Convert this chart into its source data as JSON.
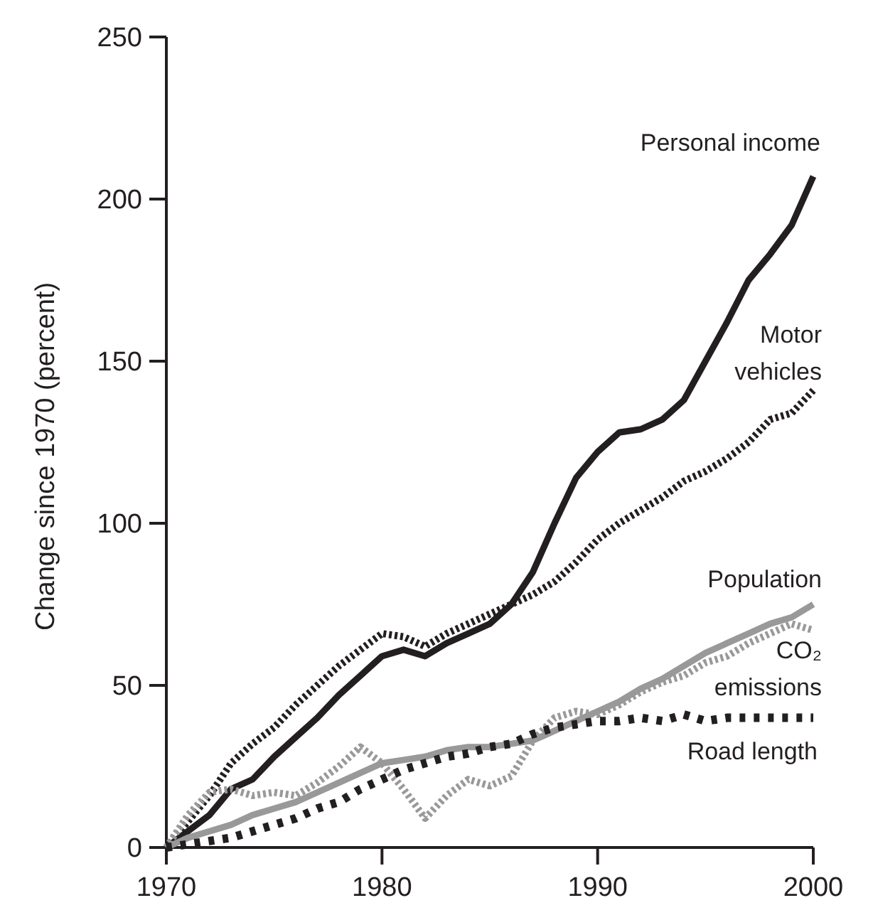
{
  "chart_data": {
    "type": "line",
    "ylabel": "Change since 1970 (percent)",
    "x": [
      1970,
      1971,
      1972,
      1973,
      1974,
      1975,
      1976,
      1977,
      1978,
      1979,
      1980,
      1981,
      1982,
      1983,
      1984,
      1985,
      1986,
      1987,
      1988,
      1989,
      1990,
      1991,
      1992,
      1993,
      1994,
      1995,
      1996,
      1997,
      1998,
      1999,
      2000
    ],
    "xlim": [
      1970,
      2000
    ],
    "xticks": [
      1970,
      1980,
      1990,
      2000
    ],
    "ylim": [
      0,
      250
    ],
    "yticks": [
      0,
      50,
      100,
      150,
      200,
      250
    ],
    "grid": false,
    "legend": false,
    "marker": "none",
    "series": [
      {
        "name": "Personal income",
        "color": "#231f20",
        "line_style": "solid",
        "values": [
          0,
          5,
          10,
          18,
          21,
          28,
          34,
          40,
          47,
          53,
          59,
          61,
          59,
          63,
          66,
          69,
          75,
          85,
          100,
          114,
          122,
          128,
          129,
          132,
          138,
          150,
          162,
          175,
          183,
          192,
          207
        ]
      },
      {
        "name": "Motor vehicles",
        "color": "#231f20",
        "line_style": "dotted",
        "values": [
          0,
          8,
          16,
          26,
          32,
          37,
          44,
          50,
          56,
          61,
          66,
          65,
          62,
          66,
          69,
          72,
          75,
          78,
          82,
          88,
          95,
          100,
          104,
          108,
          113,
          116,
          120,
          125,
          132,
          134,
          141
        ]
      },
      {
        "name": "Population",
        "color": "#999999",
        "line_style": "solid",
        "values": [
          0,
          3,
          5,
          7,
          10,
          12,
          14,
          17,
          20,
          23,
          26,
          27,
          28,
          30,
          31,
          31,
          32,
          33,
          36,
          39,
          42,
          45,
          49,
          52,
          56,
          60,
          63,
          66,
          69,
          71,
          75
        ]
      },
      {
        "name": "CO₂ emissions",
        "color": "#999999",
        "line_style": "dotted",
        "values": [
          0,
          10,
          17,
          18,
          16,
          17,
          16,
          20,
          25,
          31,
          26,
          18,
          9,
          16,
          21,
          19,
          22,
          33,
          40,
          42,
          41,
          44,
          48,
          51,
          53,
          57,
          59,
          63,
          66,
          69,
          67
        ]
      },
      {
        "name": "Road length",
        "color": "#231f20",
        "line_style": "dashed",
        "values": [
          0,
          1,
          2,
          3,
          5,
          7,
          9,
          12,
          14,
          18,
          21,
          24,
          26,
          28,
          29,
          31,
          32,
          35,
          37,
          38,
          39,
          39,
          40,
          39,
          41,
          39,
          40,
          40,
          40,
          40,
          40
        ]
      }
    ]
  }
}
